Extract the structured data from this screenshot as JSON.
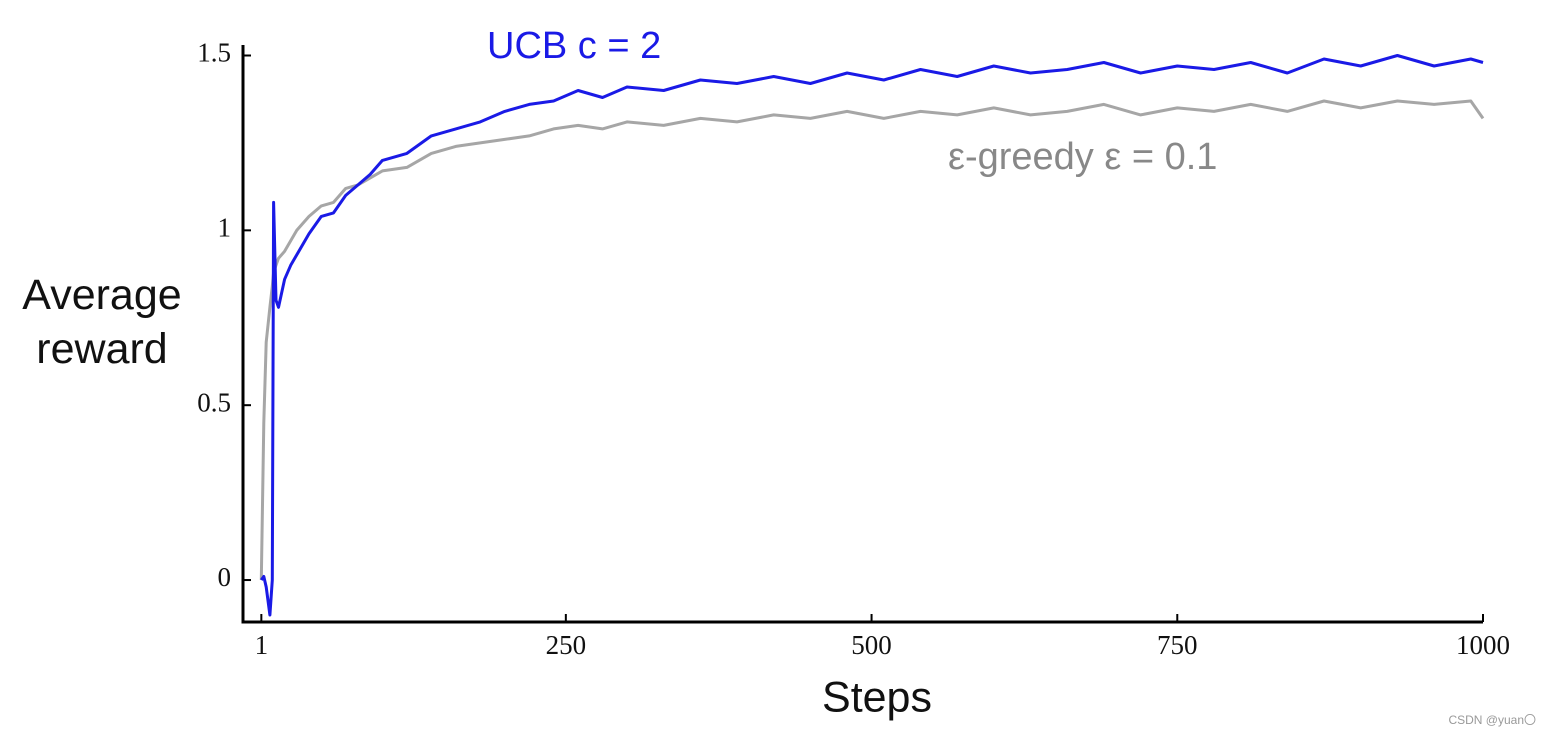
{
  "chart_data": {
    "type": "line",
    "xlabel": "Steps",
    "ylabel": "Average reward",
    "watermark": "CSDN @yuan〇",
    "x": [
      1,
      3,
      5,
      8,
      10,
      11,
      13,
      15,
      20,
      25,
      30,
      40,
      50,
      60,
      70,
      80,
      90,
      100,
      120,
      140,
      160,
      180,
      200,
      220,
      240,
      260,
      280,
      300,
      330,
      360,
      390,
      420,
      450,
      480,
      510,
      540,
      570,
      600,
      630,
      660,
      690,
      720,
      750,
      780,
      810,
      840,
      870,
      900,
      930,
      960,
      990,
      1000
    ],
    "series": [
      {
        "name": "UCB  c = 2",
        "color": "#1a1ae6",
        "values": [
          0,
          0.01,
          -0.02,
          -0.1,
          0,
          1.08,
          0.8,
          0.78,
          0.86,
          0.9,
          0.93,
          0.99,
          1.04,
          1.05,
          1.1,
          1.13,
          1.16,
          1.2,
          1.22,
          1.27,
          1.29,
          1.31,
          1.34,
          1.36,
          1.37,
          1.4,
          1.38,
          1.41,
          1.4,
          1.43,
          1.42,
          1.44,
          1.42,
          1.45,
          1.43,
          1.46,
          1.44,
          1.47,
          1.45,
          1.46,
          1.48,
          1.45,
          1.47,
          1.46,
          1.48,
          1.45,
          1.49,
          1.47,
          1.5,
          1.47,
          1.49,
          1.48
        ]
      },
      {
        "name": "ε-greedy  ε = 0.1",
        "color": "#a6a6a6",
        "values": [
          0,
          0.45,
          0.68,
          0.78,
          0.84,
          0.88,
          0.9,
          0.92,
          0.94,
          0.97,
          1.0,
          1.04,
          1.07,
          1.08,
          1.12,
          1.13,
          1.15,
          1.17,
          1.18,
          1.22,
          1.24,
          1.25,
          1.26,
          1.27,
          1.29,
          1.3,
          1.29,
          1.31,
          1.3,
          1.32,
          1.31,
          1.33,
          1.32,
          1.34,
          1.32,
          1.34,
          1.33,
          1.35,
          1.33,
          1.34,
          1.36,
          1.33,
          1.35,
          1.34,
          1.36,
          1.34,
          1.37,
          1.35,
          1.37,
          1.36,
          1.37,
          1.32
        ]
      }
    ],
    "xlim": [
      -14,
      1000
    ],
    "ylim": [
      -0.12,
      1.53
    ],
    "xticks": [
      1,
      250,
      500,
      750,
      1000
    ],
    "yticks": [
      0,
      0.5,
      1,
      1.5
    ]
  }
}
